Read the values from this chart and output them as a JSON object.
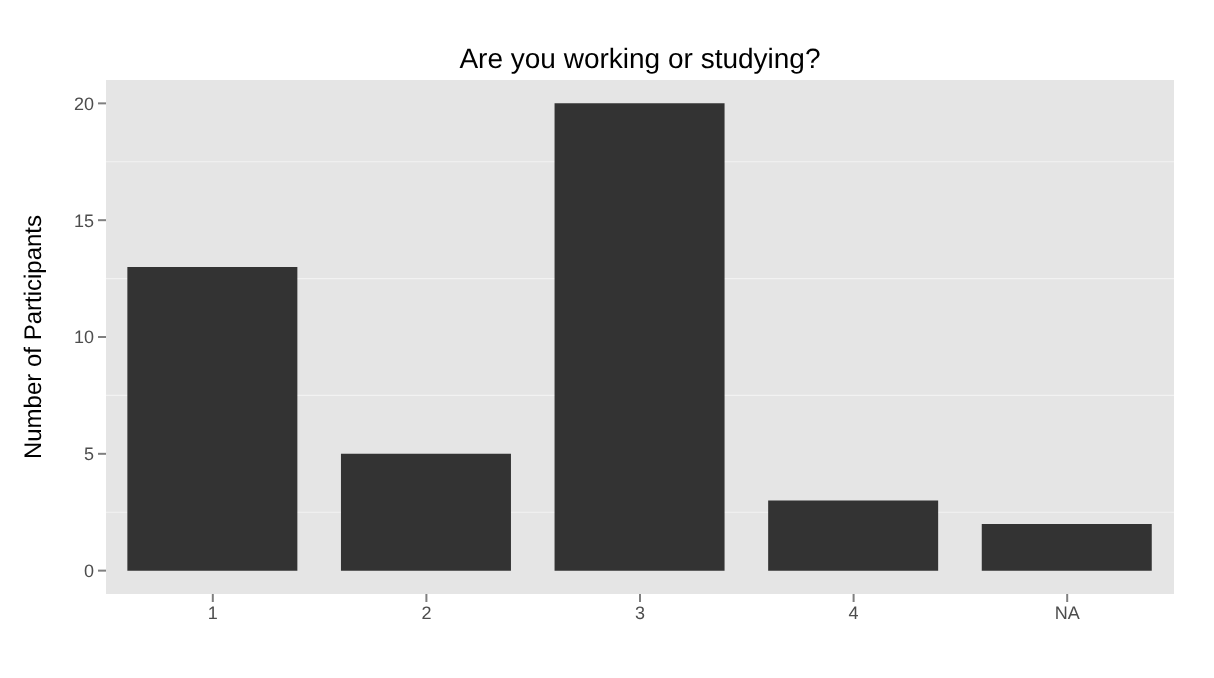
{
  "chart_data": {
    "type": "bar",
    "title": "Are you working or studying?",
    "ylabel": "Number of Participants",
    "categories": [
      "1",
      "2",
      "3",
      "4",
      "NA"
    ],
    "values": [
      13,
      5,
      20,
      3,
      2
    ],
    "color": "#333333",
    "ylim": [
      -1,
      21
    ],
    "yticks": [
      0,
      5,
      10,
      15,
      20
    ],
    "grid": true
  }
}
